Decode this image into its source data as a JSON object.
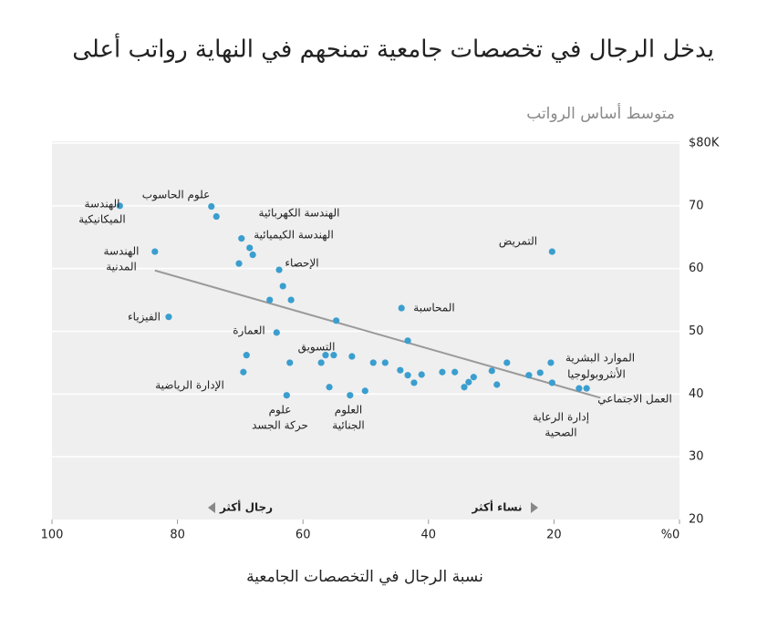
{
  "chart_data": {
    "type": "scatter",
    "title": "يدخل الرجال في تخصصات جامعية تمنحهم في النهاية رواتب أعلى",
    "y_label": "متوسط أساس الرواتب",
    "x_label": "نسبة الرجال في التخصصات الجامعية",
    "more_men": "رجال أكثر",
    "more_women": "نساء أكثر",
    "color": "#3a9ecf",
    "x": [
      89.2,
      74.6,
      73.8,
      69.8,
      68.5,
      68.0,
      70.2,
      83.6,
      63.8,
      63.2,
      65.3,
      61.9,
      81.4,
      64.2,
      54.7,
      69.0,
      69.5,
      62.1,
      62.6,
      56.4,
      55.1,
      57.1,
      52.2,
      55.8,
      52.5,
      50.1,
      48.8,
      46.9,
      44.3,
      43.3,
      44.5,
      43.3,
      42.3,
      41.1,
      37.8,
      35.8,
      34.3,
      33.6,
      32.8,
      29.9,
      29.1,
      27.5,
      24.0,
      22.2,
      20.5,
      20.3,
      20.3,
      16.0,
      14.8
    ],
    "values": [
      70.0,
      69.9,
      68.3,
      64.8,
      63.3,
      62.2,
      60.8,
      62.7,
      59.8,
      57.2,
      55.0,
      55.0,
      52.3,
      49.8,
      51.7,
      46.2,
      43.5,
      45.0,
      39.8,
      46.2,
      46.2,
      45.0,
      46.0,
      41.1,
      39.8,
      40.5,
      45.0,
      45.0,
      53.7,
      48.5,
      43.8,
      43.0,
      41.8,
      43.1,
      43.5,
      43.5,
      41.1,
      41.9,
      42.7,
      43.7,
      41.5,
      45.0,
      43.0,
      43.4,
      45.0,
      41.8,
      62.7,
      40.9,
      40.9
    ],
    "trend": {
      "color": "#9a9a9a",
      "x": [
        83.6,
        12.6
      ],
      "y": [
        59.7,
        39.4
      ]
    },
    "xlim": [
      100,
      0
    ],
    "ylim": [
      20,
      80
    ],
    "xticks": [
      100,
      80,
      60,
      40,
      20,
      {
        "value": 0,
        "label": "%0"
      }
    ],
    "yticks": [
      20,
      30,
      40,
      50,
      60,
      70,
      {
        "value": 80,
        "label": "$80K"
      }
    ],
    "grid": true,
    "annotations": [
      {
        "lines": [
          "الهندسة",
          "الميكانيكية"
        ]
      },
      {
        "lines": [
          "علوم الحاسوب"
        ]
      },
      {
        "lines": [
          "الهندسة الكهربائية"
        ]
      },
      {
        "lines": [
          "الهندسة الكيميائية"
        ]
      },
      {
        "lines": [
          "الإحصاء"
        ]
      },
      {
        "lines": [
          "الهندسة",
          "المدنية"
        ]
      },
      {
        "lines": [
          "الفيزياء"
        ]
      },
      {
        "lines": [
          "العمارة"
        ]
      },
      {
        "lines": [
          "التسويق"
        ]
      },
      {
        "lines": [
          "الإدارة الرياضية"
        ]
      },
      {
        "lines": [
          "علوم",
          "حركة الجسد"
        ]
      },
      {
        "lines": [
          "العلوم",
          "الجنائية"
        ]
      },
      {
        "lines": [
          "المحاسبة"
        ]
      },
      {
        "lines": [
          "التمريض"
        ]
      },
      {
        "lines": [
          "الموارد البشرية"
        ]
      },
      {
        "lines": [
          "الأنثروبولوجيا"
        ]
      },
      {
        "lines": [
          "العمل الاجتماعي"
        ]
      },
      {
        "lines": [
          "إدارة الرعاية",
          "الصحية"
        ]
      }
    ]
  }
}
